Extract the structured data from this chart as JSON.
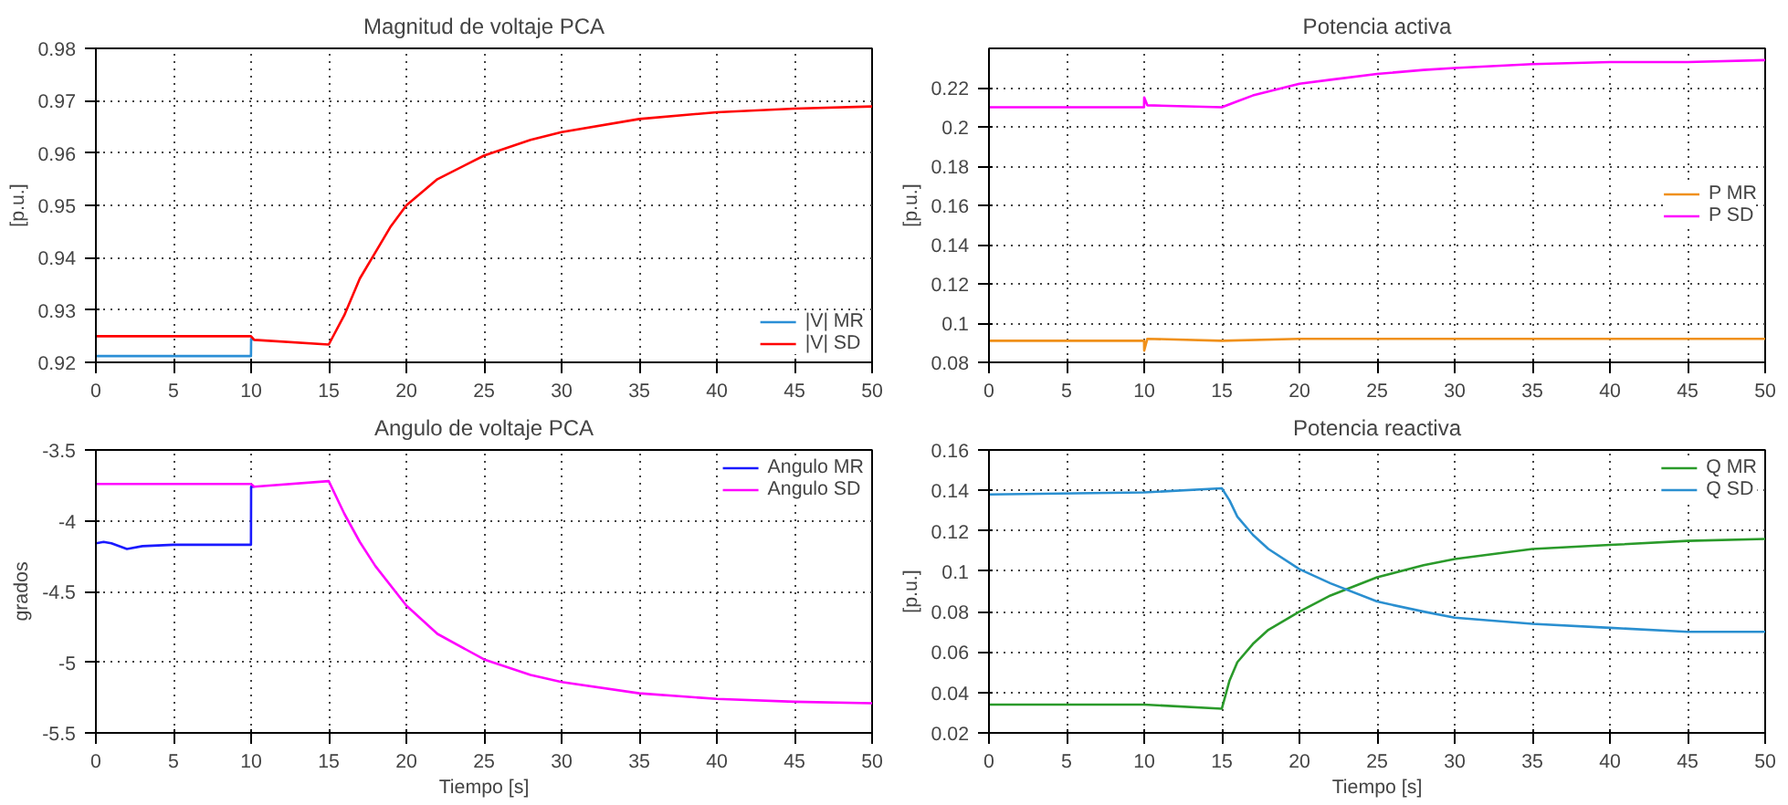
{
  "chart_data": [
    {
      "type": "line",
      "title": "Magnitud de voltaje PCA",
      "ylabel": "[p.u.]",
      "xlim": [
        0,
        50
      ],
      "xticks": [
        0,
        5,
        10,
        15,
        20,
        25,
        30,
        35,
        40,
        45,
        50
      ],
      "ylim": [
        0.92,
        0.98
      ],
      "yticks": [
        0.92,
        0.93,
        0.94,
        0.95,
        0.96,
        0.97,
        0.98
      ],
      "grid": true,
      "legend": "bottom right",
      "line_style": "solid",
      "series": [
        {
          "name": "|V| MR",
          "color": "#2b8fd6",
          "x": [
            0,
            9.99,
            10,
            10.2
          ],
          "values": [
            0.9212,
            0.9212,
            0.9245,
            0.9243
          ]
        },
        {
          "name": "|V| SD",
          "color": "#ff0000",
          "x": [
            0,
            9.99,
            10.2,
            15,
            16,
            17,
            18,
            19,
            20,
            22,
            25,
            28,
            30,
            35,
            40,
            45,
            50
          ],
          "values": [
            0.925,
            0.925,
            0.9243,
            0.9234,
            0.929,
            0.936,
            0.941,
            0.946,
            0.95,
            0.955,
            0.9595,
            0.9625,
            0.964,
            0.9665,
            0.9678,
            0.9685,
            0.9689
          ]
        }
      ]
    },
    {
      "type": "line",
      "title": "Potencia activa",
      "ylabel": "[p.u.]",
      "xlim": [
        0,
        50
      ],
      "xticks": [
        0,
        5,
        10,
        15,
        20,
        25,
        30,
        35,
        40,
        45,
        50
      ],
      "ylim": [
        0.08,
        0.24
      ],
      "yticks": [
        0.08,
        0.1,
        0.12,
        0.14,
        0.16,
        0.18,
        0.2,
        0.22
      ],
      "grid": true,
      "legend": "right",
      "line_style": "solid",
      "series": [
        {
          "name": "P MR",
          "color": "#f0901a",
          "x": [
            0,
            9.99,
            10,
            10.2,
            15,
            20,
            30,
            40,
            50
          ],
          "values": [
            0.091,
            0.091,
            0.086,
            0.092,
            0.091,
            0.092,
            0.092,
            0.092,
            0.092
          ]
        },
        {
          "name": "P SD",
          "color": "#ff00ff",
          "x": [
            0,
            9.99,
            10,
            10.2,
            15,
            16,
            17,
            18,
            20,
            22,
            25,
            28,
            30,
            35,
            40,
            45,
            50
          ],
          "values": [
            0.21,
            0.21,
            0.215,
            0.211,
            0.21,
            0.213,
            0.216,
            0.218,
            0.222,
            0.224,
            0.227,
            0.229,
            0.23,
            0.232,
            0.233,
            0.233,
            0.234
          ]
        }
      ]
    },
    {
      "type": "line",
      "title": "Angulo de voltaje PCA",
      "xlabel": "Tiempo [s]",
      "ylabel": "grados",
      "xlim": [
        0,
        50
      ],
      "xticks": [
        0,
        5,
        10,
        15,
        20,
        25,
        30,
        35,
        40,
        45,
        50
      ],
      "ylim": [
        -5.5,
        -3.5
      ],
      "yticks": [
        -5.5,
        -5,
        -4.5,
        -4,
        -3.5
      ],
      "grid": true,
      "legend": "top right",
      "line_style": "solid",
      "series": [
        {
          "name": "Angulo MR",
          "color": "#1a1aff",
          "x": [
            0,
            0.5,
            1,
            2,
            3,
            5,
            9.99,
            10,
            10.2
          ],
          "values": [
            -4.16,
            -4.15,
            -4.16,
            -4.2,
            -4.18,
            -4.17,
            -4.17,
            -3.76,
            -3.76
          ]
        },
        {
          "name": "Angulo SD",
          "color": "#ff00ff",
          "x": [
            0,
            9.99,
            10.2,
            15,
            16,
            17,
            18,
            20,
            22,
            25,
            28,
            30,
            35,
            40,
            45,
            50
          ],
          "values": [
            -3.74,
            -3.74,
            -3.76,
            -3.72,
            -3.95,
            -4.15,
            -4.32,
            -4.6,
            -4.8,
            -4.98,
            -5.09,
            -5.14,
            -5.22,
            -5.26,
            -5.28,
            -5.29
          ]
        }
      ]
    },
    {
      "type": "line",
      "title": "Potencia reactiva",
      "xlabel": "Tiempo [s]",
      "ylabel": "[p.u.]",
      "xlim": [
        0,
        50
      ],
      "xticks": [
        0,
        5,
        10,
        15,
        20,
        25,
        30,
        35,
        40,
        45,
        50
      ],
      "ylim": [
        0.02,
        0.16
      ],
      "yticks": [
        0.02,
        0.04,
        0.06,
        0.08,
        0.1,
        0.12,
        0.14,
        0.16
      ],
      "grid": true,
      "legend": "top right",
      "line_style": "solid",
      "series": [
        {
          "name": "Q MR",
          "color": "#2a9a2a",
          "x": [
            0,
            10,
            15,
            15.5,
            16,
            17,
            18,
            20,
            22,
            25,
            28,
            30,
            35,
            40,
            45,
            50
          ],
          "values": [
            0.034,
            0.034,
            0.032,
            0.046,
            0.055,
            0.064,
            0.071,
            0.08,
            0.088,
            0.097,
            0.103,
            0.106,
            0.111,
            0.113,
            0.115,
            0.116
          ]
        },
        {
          "name": "Q SD",
          "color": "#2a8fd0",
          "x": [
            0,
            10,
            15,
            15.5,
            16,
            17,
            18,
            20,
            22,
            25,
            28,
            30,
            35,
            40,
            45,
            50
          ],
          "values": [
            0.138,
            0.139,
            0.141,
            0.135,
            0.127,
            0.118,
            0.111,
            0.101,
            0.094,
            0.085,
            0.08,
            0.077,
            0.074,
            0.072,
            0.07,
            0.07
          ]
        }
      ]
    }
  ]
}
